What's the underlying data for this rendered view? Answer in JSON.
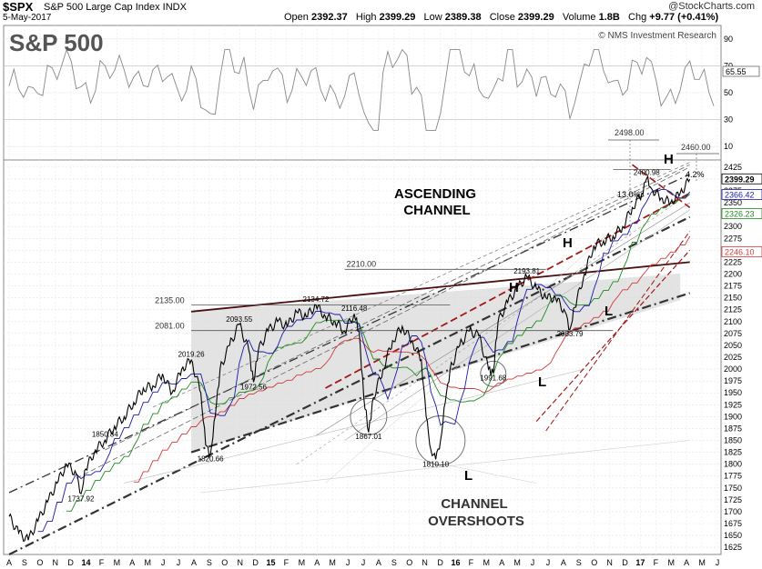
{
  "header": {
    "symbol": "$SPX",
    "name": "S&P 500 Large Cap Index INDX",
    "date": "5-May-2017",
    "open_label": "Open",
    "open": "2392.37",
    "high_label": "High",
    "high": "2399.29",
    "low_label": "Low",
    "low": "2389.38",
    "close_label": "Close",
    "close": "2399.29",
    "volume_label": "Volume",
    "volume": "1.8B",
    "chg_label": "Chg",
    "chg": "+9.77 (+0.41%)",
    "brand": "@StockCharts.com"
  },
  "colors": {
    "price": "#000000",
    "ma_short": "#1a1aa6",
    "ma_mid": "#1f8a1f",
    "ma_long": "#d23a3a",
    "trend_red": "#a01818",
    "channel": "#333333",
    "shade": "#d9d9d9",
    "rsi": "#888888"
  },
  "chart_data": {
    "type": "line",
    "title": "S&P 500",
    "watermark": "© NMS Investment Research",
    "annotations": {
      "ascending": "ASCENDING",
      "channel": "CHANNEL",
      "channel2": "CHANNEL",
      "overshoots": "OVERSHOOTS"
    },
    "rsi_panel": {
      "ticks": [
        90,
        70,
        50,
        30,
        10
      ],
      "last_value": 65.55
    },
    "x_axis": {
      "labels": [
        "A",
        "S",
        "O",
        "N",
        "D",
        "14",
        "F",
        "M",
        "A",
        "M",
        "J",
        "J",
        "A",
        "S",
        "O",
        "N",
        "D",
        "15",
        "F",
        "M",
        "A",
        "M",
        "J",
        "J",
        "A",
        "S",
        "O",
        "N",
        "D",
        "16",
        "F",
        "M",
        "A",
        "M",
        "J",
        "J",
        "A",
        "S",
        "O",
        "N",
        "D",
        "17",
        "F",
        "M",
        "A",
        "M",
        "J"
      ],
      "bold": [
        "14",
        "15",
        "16",
        "17"
      ]
    },
    "y_axis": {
      "ticks": [
        2425,
        2400,
        2375,
        2350,
        2325,
        2300,
        2275,
        2250,
        2225,
        2200,
        2175,
        2150,
        2125,
        2100,
        2075,
        2050,
        2025,
        2000,
        1975,
        1950,
        1925,
        1900,
        1875,
        1850,
        1825,
        1800,
        1775,
        1750,
        1725,
        1700,
        1675,
        1650,
        1625
      ],
      "ylim": [
        1610,
        2440
      ]
    },
    "price_series": [
      [
        0,
        1690
      ],
      [
        2,
        1655
      ],
      [
        4,
        1640
      ],
      [
        6,
        1680
      ],
      [
        8,
        1720
      ],
      [
        10,
        1760
      ],
      [
        12,
        1800
      ],
      [
        14,
        1780
      ],
      [
        15,
        1737.92
      ],
      [
        16,
        1790
      ],
      [
        18,
        1830
      ],
      [
        20,
        1850.84
      ],
      [
        22,
        1880
      ],
      [
        24,
        1900
      ],
      [
        26,
        1930
      ],
      [
        28,
        1960
      ],
      [
        30,
        1965
      ],
      [
        32,
        1990
      ],
      [
        34,
        1950
      ],
      [
        36,
        2000
      ],
      [
        38,
        2019.26
      ],
      [
        40,
        1950
      ],
      [
        41,
        1840
      ],
      [
        42,
        1820.66
      ],
      [
        43,
        1900
      ],
      [
        44,
        2000
      ],
      [
        46,
        2050
      ],
      [
        48,
        2093.55
      ],
      [
        50,
        2040
      ],
      [
        51,
        1972.56
      ],
      [
        52,
        2040
      ],
      [
        54,
        2080
      ],
      [
        56,
        2100
      ],
      [
        58,
        2090
      ],
      [
        60,
        2120
      ],
      [
        62,
        2110
      ],
      [
        64,
        2134.72
      ],
      [
        66,
        2110
      ],
      [
        68,
        2100
      ],
      [
        70,
        2080
      ],
      [
        72,
        2116.48
      ],
      [
        73,
        2080
      ],
      [
        74,
        1940
      ],
      [
        75,
        1867.01
      ],
      [
        76,
        1940
      ],
      [
        78,
        2000
      ],
      [
        80,
        2060
      ],
      [
        82,
        2090
      ],
      [
        84,
        2060
      ],
      [
        86,
        2020
      ],
      [
        87,
        1900
      ],
      [
        88,
        1830
      ],
      [
        89,
        1810.1
      ],
      [
        90,
        1850
      ],
      [
        91,
        1930
      ],
      [
        92,
        2000
      ],
      [
        94,
        2050
      ],
      [
        96,
        2080
      ],
      [
        98,
        2070
      ],
      [
        100,
        2000
      ],
      [
        101,
        1991.68
      ],
      [
        102,
        2100
      ],
      [
        104,
        2140
      ],
      [
        106,
        2170
      ],
      [
        108,
        2193.81
      ],
      [
        110,
        2170
      ],
      [
        112,
        2150
      ],
      [
        114,
        2150
      ],
      [
        116,
        2120
      ],
      [
        117,
        2083.79
      ],
      [
        118,
        2130
      ],
      [
        120,
        2200
      ],
      [
        122,
        2260
      ],
      [
        124,
        2270
      ],
      [
        126,
        2280
      ],
      [
        128,
        2300
      ],
      [
        130,
        2340
      ],
      [
        132,
        2370
      ],
      [
        133,
        2400.98
      ],
      [
        134,
        2380
      ],
      [
        136,
        2360
      ],
      [
        138,
        2350
      ],
      [
        140,
        2370
      ],
      [
        142,
        2399.29
      ]
    ],
    "price_labels": {
      "p1737": "1737.92",
      "p1850": "1850.84",
      "p2019": "2019.26",
      "p1820": "1820.66",
      "p2093": "2093.55",
      "p1972": "1972.56",
      "p2134": "2134.72",
      "p2116": "2116.48",
      "p1867": "1867.01",
      "p1810": "1810.10",
      "p2193": "2193.81",
      "p1991": "1991.68",
      "p2083": "2083.79",
      "p2400": "2400.98"
    },
    "level_labels": {
      "l2135": "2135.00",
      "l2081": "2081.00",
      "l2210": "2210.00",
      "l2498": "2498.00",
      "l2460": "2460.00"
    },
    "percent_labels": {
      "pct13": "13.0%",
      "pct4": "4.2%"
    },
    "pattern_labels": {
      "h1": "H",
      "h2": "H",
      "h3": "H",
      "l1": "L",
      "l2": "L",
      "l3": "L"
    },
    "right_tags": {
      "t2399": "2399.29",
      "t2366": "2366.42",
      "t2326": "2326.23",
      "t2246": "2246.10",
      "t6555": "65.55"
    }
  }
}
